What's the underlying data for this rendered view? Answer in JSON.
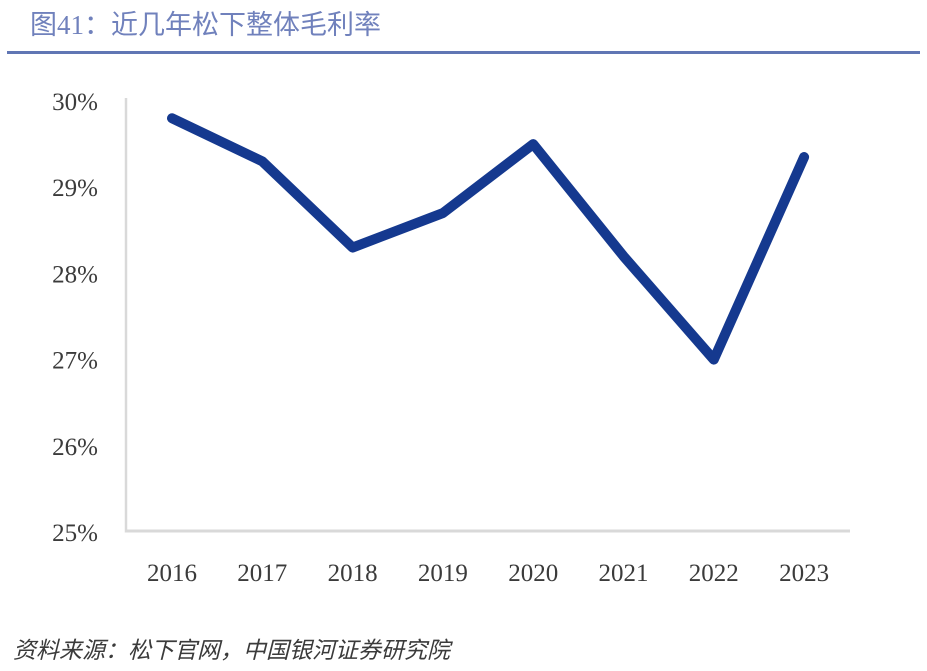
{
  "header": {
    "title": "图41：近几年松下整体毛利率"
  },
  "footer": {
    "source": "资料来源：松下官网，中国银河证券研究院"
  },
  "colors": {
    "title": "#7081BC",
    "header_rule": "#6076B4",
    "series_line": "#15398F",
    "axis": "#D9D9D9",
    "tick_text": "#3B3B3B"
  },
  "chart_data": {
    "type": "line",
    "title": "图41：近几年松下整体毛利率",
    "x": [
      "2016",
      "2017",
      "2018",
      "2019",
      "2020",
      "2021",
      "2022",
      "2023"
    ],
    "series": [
      {
        "name": "松下整体毛利率",
        "values": [
          29.8,
          29.3,
          28.3,
          28.7,
          29.5,
          28.2,
          27.0,
          29.35
        ]
      }
    ],
    "xlabel": "",
    "ylabel": "",
    "ylim": [
      25,
      30
    ],
    "yticks": [
      25,
      26,
      27,
      28,
      29,
      30
    ],
    "ytick_suffix": "%",
    "grid": false,
    "legend_position": "none",
    "source": "资料来源：松下官网，中国银河证券研究院"
  }
}
